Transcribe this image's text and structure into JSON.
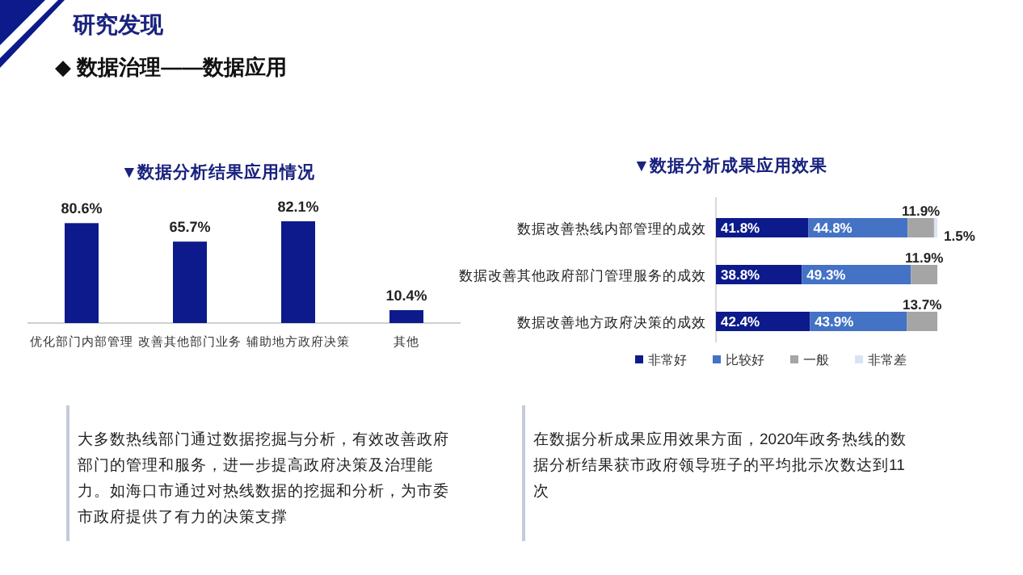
{
  "chart_data": [
    {
      "type": "bar",
      "title": "▼数据分析结果应用情况",
      "categories": [
        "优化部门内部管理",
        "改善其他部门业务",
        "辅助地方政府决策",
        "其他"
      ],
      "values": [
        80.6,
        65.7,
        82.1,
        10.4
      ],
      "value_labels": [
        "80.6%",
        "65.7%",
        "82.1%",
        "10.4%"
      ],
      "color": "#0d1a8c",
      "annotations": [
        "研究发现",
        "◆ 数据治理——数据应用",
        "大多数热线部门通过数据挖掘与分析，有效改善政府部门的管理和服务，进一步提高政府决策及治理能力。如海口市通过对热线数据的挖掘和分析，为市委市政府提供了有力的决策支撑"
      ]
    },
    {
      "type": "bar",
      "orientation": "horizontal",
      "stacked": true,
      "title": "▼数据分析成果应用效果",
      "categories": [
        "数据改善热线内部管理的成效",
        "数据改善其他政府部门管理服务的成效",
        "数据改善地方政府决策的成效"
      ],
      "legend": "bottom",
      "series": [
        {
          "name": "非常好",
          "color": "#0d1a8c",
          "values": [
            41.8,
            38.8,
            42.4
          ],
          "value_labels": [
            "41.8%",
            "38.8%",
            "42.4%"
          ]
        },
        {
          "name": "比较好",
          "color": "#4472c4",
          "values": [
            44.8,
            49.3,
            43.9
          ],
          "value_labels": [
            "44.8%",
            "49.3%",
            "43.9%"
          ]
        },
        {
          "name": "一般",
          "color": "#a5a5a5",
          "values": [
            11.9,
            11.9,
            13.7
          ],
          "value_labels": [
            "11.9%",
            "11.9%",
            "13.7%"
          ]
        },
        {
          "name": "非常差",
          "color": "#dae3f3",
          "values": [
            1.5,
            null,
            null
          ],
          "value_labels": [
            "1.5%",
            null,
            null
          ]
        }
      ],
      "annotations": [
        "在数据分析成果应用效果方面，2020年政务热线的数据分析结果获市政府领导班子的平均批示次数达到11次"
      ]
    }
  ]
}
